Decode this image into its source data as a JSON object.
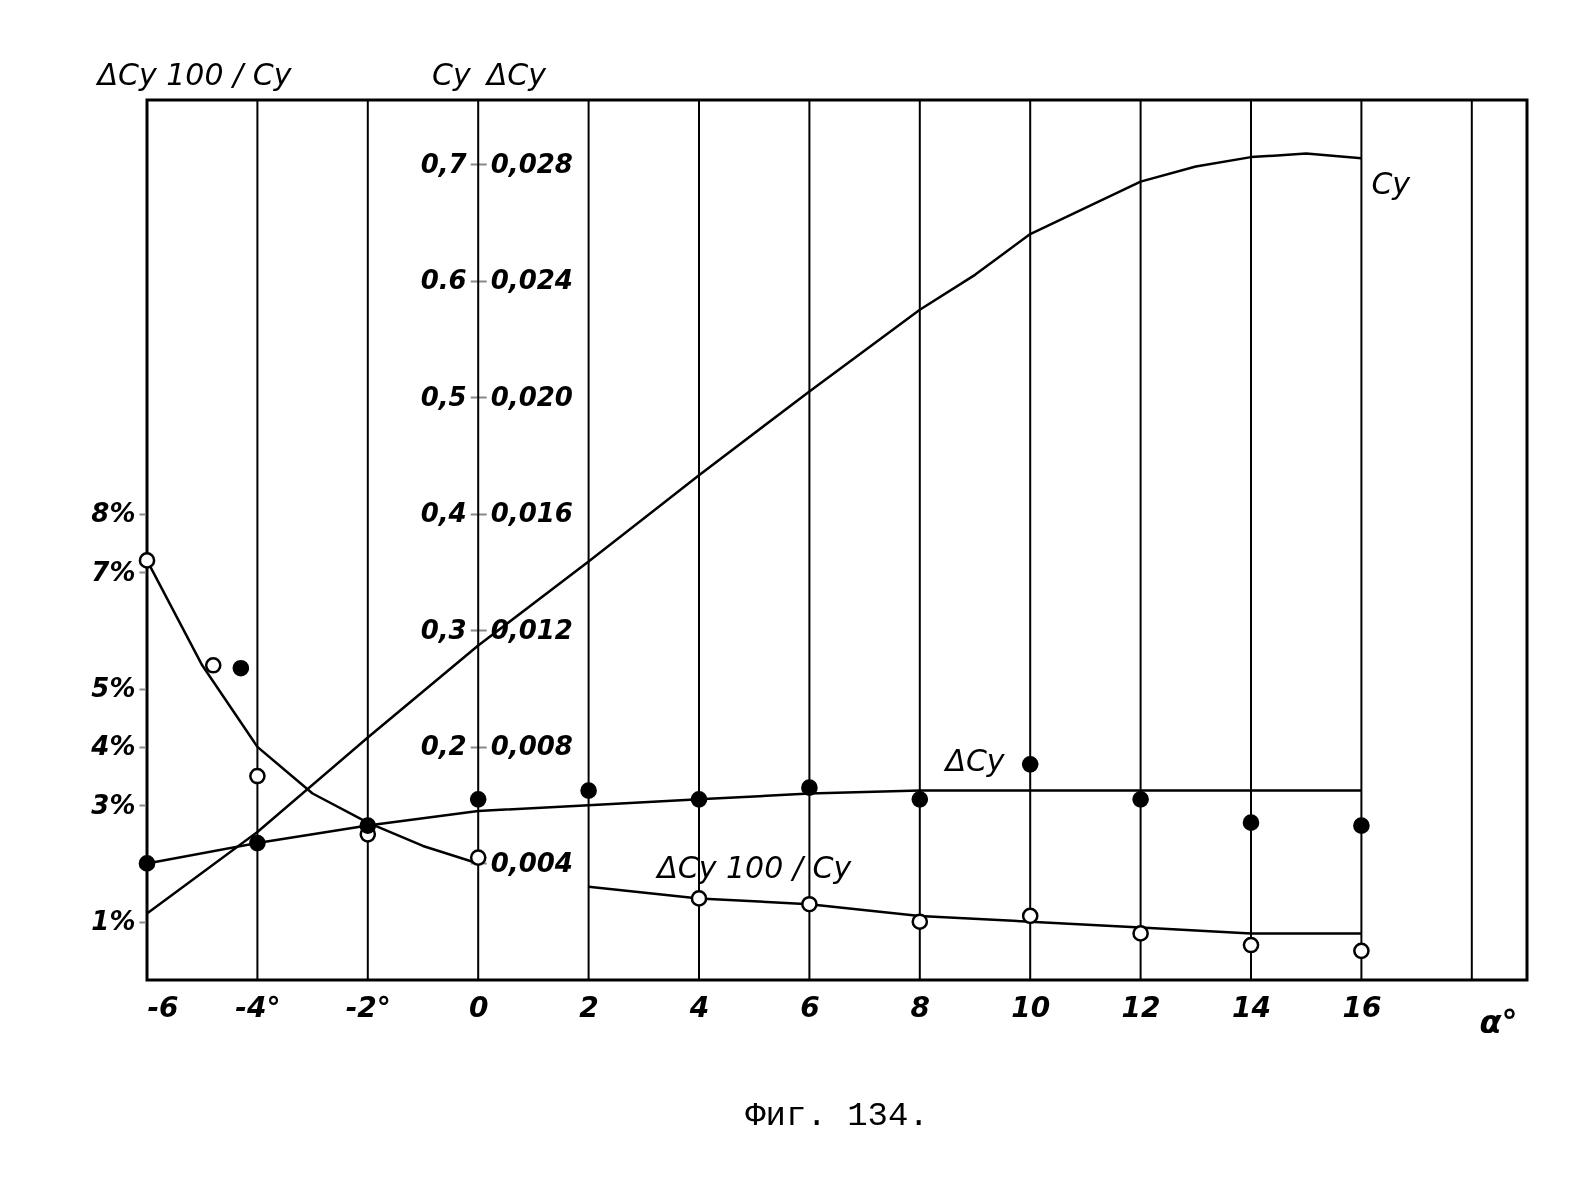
{
  "chart_data": {
    "type": "line",
    "xlabel": "α°",
    "ylabel": "Cy",
    "y2label": "ΔCy",
    "y3label": "ΔCy 100 / Cy",
    "annotations": [
      "Фиг. 134."
    ],
    "xlim": [
      -6,
      19
    ],
    "xticks": [
      -6,
      {
        "value": -4,
        "label": "-4°"
      },
      {
        "value": -2,
        "label": "-2°"
      },
      0,
      2,
      4,
      6,
      8,
      10,
      12,
      14,
      16,
      {
        "value": 18,
        "label": null
      }
    ],
    "ylim": [
      0,
      0.755
    ],
    "yticks": [
      {
        "value": 0.1,
        "label": null
      },
      {
        "value": 0.2,
        "label": "0,2"
      },
      {
        "value": 0.3,
        "label": "0,3"
      },
      {
        "value": 0.4,
        "label": "0,4"
      },
      {
        "value": 0.5,
        "label": "0,5"
      },
      {
        "value": 0.6,
        "label": "0.6"
      },
      {
        "value": 0.7,
        "label": "0,7"
      }
    ],
    "y2lim": [
      0,
      0.0302
    ],
    "y2ticks": [
      {
        "value": 0.004,
        "label": "0,004"
      },
      {
        "value": 0.008,
        "label": "0,008"
      },
      {
        "value": 0.012,
        "label": "0,012"
      },
      {
        "value": 0.016,
        "label": "0,016"
      },
      {
        "value": 0.02,
        "label": "0,020"
      },
      {
        "value": 0.024,
        "label": "0,024"
      },
      {
        "value": 0.028,
        "label": "0,028"
      }
    ],
    "y3lim": [
      0,
      15.1
    ],
    "y3ticks": [
      {
        "value": 1,
        "label": "1%"
      },
      {
        "value": 3,
        "label": "3%"
      },
      {
        "value": 4,
        "label": "4%"
      },
      {
        "value": 5,
        "label": "5%"
      },
      {
        "value": 7,
        "label": "7%"
      },
      {
        "value": 8,
        "label": "8%"
      }
    ],
    "grid": true,
    "series": [
      {
        "name": "Cy",
        "type": "line",
        "color": "#000000",
        "marker": "none",
        "x": [
          -6,
          -4,
          -2,
          0,
          2,
          4,
          6,
          8,
          9,
          10,
          12,
          13,
          14,
          15,
          16
        ],
        "values": [
          0.057,
          0.127,
          0.208,
          0.287,
          0.359,
          0.433,
          0.505,
          0.575,
          0.605,
          0.64,
          0.685,
          0.698,
          0.706,
          0.709,
          0.705
        ]
      },
      {
        "name": "ΔCy",
        "type": "line",
        "axis": "y2",
        "color": "#000000",
        "marker": "none",
        "x": [
          -6,
          -4,
          -2,
          0,
          2,
          4,
          6,
          8,
          10,
          12,
          14,
          16
        ],
        "values": [
          0.004,
          0.0047,
          0.0053,
          0.0058,
          0.006,
          0.0062,
          0.0064,
          0.0065,
          0.0065,
          0.0065,
          0.0065,
          0.0065
        ]
      },
      {
        "type": "scatter",
        "axis": "y2",
        "color": "#000000",
        "marker": "circle",
        "x": [
          -4.3
        ],
        "values": [
          0.0107
        ]
      },
      {
        "name": "ΔCy 100 / Cy",
        "type": "line",
        "axis": "y3",
        "color": "#000000",
        "marker": "none",
        "x": [
          -6,
          -5,
          -4,
          -3,
          -2,
          -1,
          0,
          1,
          2,
          4,
          6,
          8,
          10,
          12,
          14,
          16
        ],
        "values": [
          7.2,
          5.4,
          4.0,
          3.2,
          2.7,
          2.3,
          2.0,
          null,
          1.6,
          1.4,
          1.3,
          1.1,
          1.0,
          0.9,
          0.8,
          0.8
        ]
      },
      {
        "type": "scatter",
        "axis": "y3",
        "color": "#000000",
        "marker": "circle",
        "x": [
          -6,
          -4,
          -2,
          0,
          4,
          6,
          8,
          10,
          12,
          14,
          16
        ],
        "values": [
          7.2,
          3.5,
          2.5,
          2.1,
          1.4,
          1.3,
          1.0,
          1.1,
          0.8,
          0.6,
          0.5
        ]
      },
      {
        "type": "scatter",
        "axis": "y3",
        "color": "#000000",
        "marker": "circle",
        "x": [
          -4.8
        ],
        "values": [
          5.4
        ]
      },
      {
        "type": "scatter",
        "axis": "y2",
        "color": "#000000",
        "marker": "circle",
        "x": [
          -6,
          -4,
          -2,
          0,
          2,
          4,
          6,
          8,
          10,
          12,
          14,
          16
        ],
        "values": [
          0.004,
          0.0047,
          0.0053,
          0.0062,
          0.0065,
          0.0062,
          0.0066,
          0.0062,
          0.0074,
          0.0062,
          0.0054,
          0.0053
        ]
      }
    ]
  }
}
